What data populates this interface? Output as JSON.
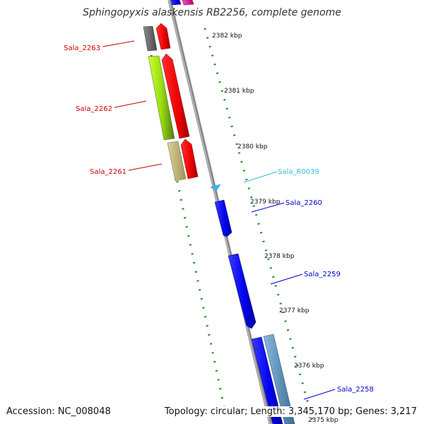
{
  "title": "Sphingopyxis alaskensis RB2256, complete genome",
  "footer": {
    "accession": "Accession: NC_008048",
    "topology": "Topology: circular; Length: 3,345,170 bp; Genes: 3,217"
  },
  "colors": {
    "backbone": "#8a8a8a",
    "tick": "#228b22",
    "label_forward": "#cc0000",
    "label_reverse": "#0000cc",
    "label_rna": "#33bbdd"
  },
  "ticks": [
    "2382 kbp",
    "2381 kbp",
    "2380 kbp",
    "2379 kbp",
    "2378 kbp",
    "2377 kbp",
    "2376 kbp",
    "2375 kbp"
  ],
  "genes": [
    {
      "label": "Sala_2263",
      "strand": "+",
      "color": "#cc0000"
    },
    {
      "label": "Sala_2262",
      "strand": "+",
      "color": "#cc0000"
    },
    {
      "label": "Sala_2261",
      "strand": "+",
      "color": "#cc0000"
    },
    {
      "label": "Sala_R0039",
      "strand": "-",
      "color": "#33bbdd"
    },
    {
      "label": "Sala_2260",
      "strand": "-",
      "color": "#0000cc"
    },
    {
      "label": "Sala_2259",
      "strand": "-",
      "color": "#0000cc"
    },
    {
      "label": "Sala_2258",
      "strand": "-",
      "color": "#0000cc"
    }
  ]
}
